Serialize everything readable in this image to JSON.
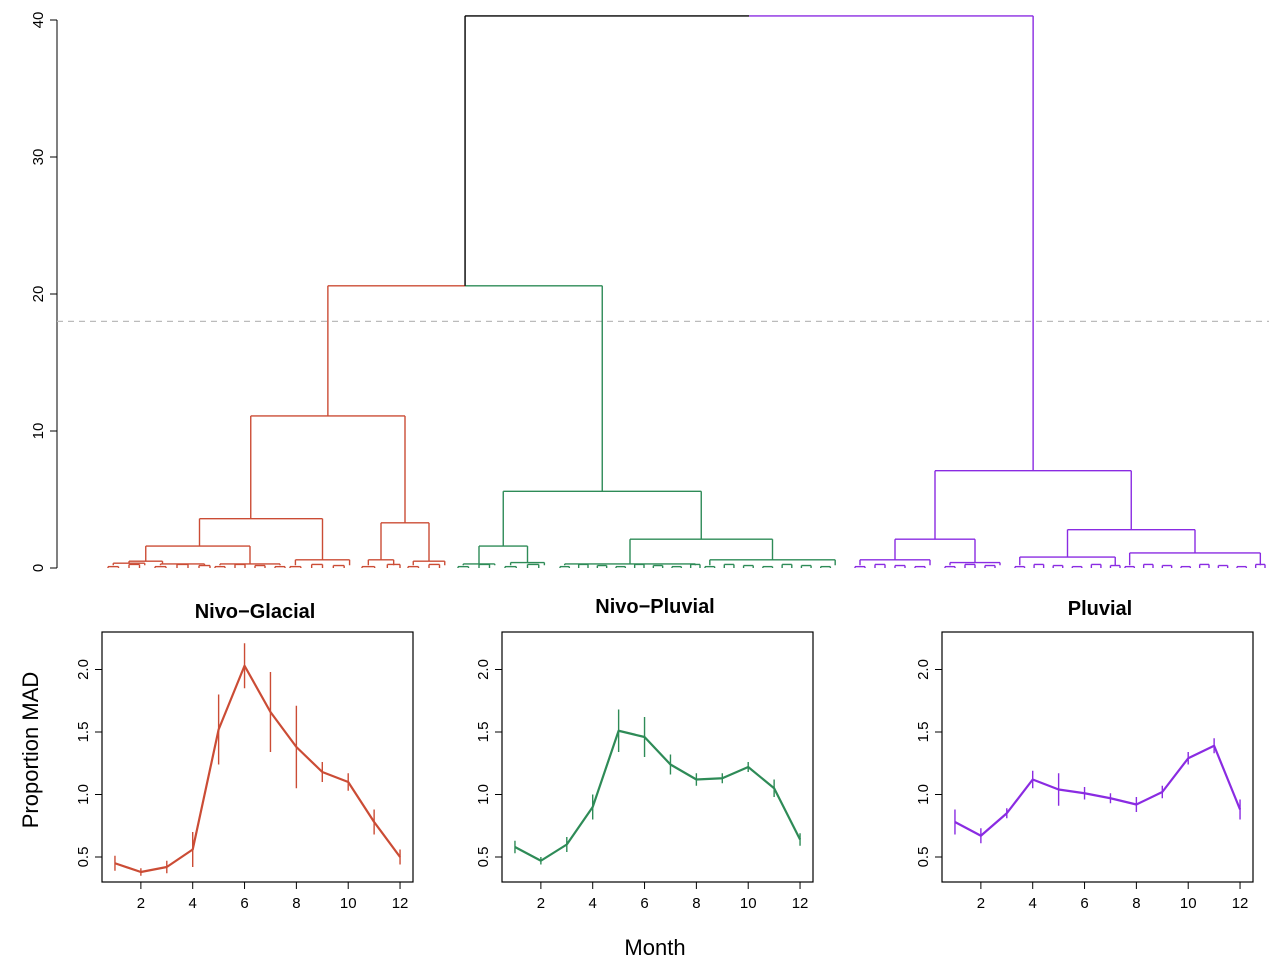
{
  "colors": {
    "nivo_glacial": "#CB4C35",
    "nivo_pluvial": "#2E8B57",
    "pluvial": "#8A2BE2",
    "root": "#000000",
    "cut_line": "#BBBBBB"
  },
  "chart_data": [
    {
      "type": "dendrogram",
      "y_ticks": [
        "0",
        "10",
        "20",
        "30",
        "40"
      ],
      "ylim": [
        0,
        40
      ],
      "cut_height": 18,
      "merges": {
        "root": 40.3,
        "nivo_glacial_nivo_pluvial": 20.6,
        "nivo_glacial": 11.1,
        "nivo_glacial_left": 3.6,
        "nivo_glacial_right": 3.3,
        "nivo_pluvial": 5.6,
        "nivo_pluvial_right": 2.1,
        "nivo_pluvial_left": 1.6,
        "pluvial": 7.1,
        "pluvial_right": 2.8,
        "pluvial_left": 2.1
      },
      "groups": [
        "Nivo-Glacial",
        "Nivo-Pluvial",
        "Pluvial"
      ]
    },
    {
      "type": "line",
      "title": "Nivo−Glacial",
      "x": [
        1,
        2,
        3,
        4,
        5,
        6,
        7,
        8,
        9,
        10,
        11,
        12
      ],
      "values": [
        0.45,
        0.38,
        0.42,
        0.56,
        1.52,
        2.03,
        1.66,
        1.38,
        1.18,
        1.1,
        0.78,
        0.5
      ],
      "error": [
        0.06,
        0.03,
        0.05,
        0.14,
        0.28,
        0.18,
        0.32,
        0.33,
        0.08,
        0.07,
        0.1,
        0.06
      ],
      "x_ticks": [
        "2",
        "4",
        "6",
        "8",
        "10",
        "12"
      ],
      "y_ticks": [
        "0.5",
        "1.0",
        "1.5",
        "2.0"
      ],
      "ylim": [
        0.3,
        2.3
      ],
      "xlim": [
        0.5,
        12.5
      ]
    },
    {
      "type": "line",
      "title": "Nivo−Pluvial",
      "x": [
        1,
        2,
        3,
        4,
        5,
        6,
        7,
        8,
        9,
        10,
        11,
        12
      ],
      "values": [
        0.58,
        0.47,
        0.6,
        0.9,
        1.51,
        1.46,
        1.24,
        1.12,
        1.13,
        1.22,
        1.05,
        0.64
      ],
      "error": [
        0.05,
        0.03,
        0.06,
        0.1,
        0.17,
        0.16,
        0.08,
        0.05,
        0.04,
        0.04,
        0.07,
        0.05
      ],
      "x_ticks": [
        "2",
        "4",
        "6",
        "8",
        "10",
        "12"
      ],
      "y_ticks": [
        "0.5",
        "1.0",
        "1.5",
        "2.0"
      ],
      "ylim": [
        0.3,
        2.3
      ],
      "xlim": [
        0.5,
        12.5
      ]
    },
    {
      "type": "line",
      "title": "Pluvial",
      "x": [
        1,
        2,
        3,
        4,
        5,
        6,
        7,
        8,
        9,
        10,
        11,
        12
      ],
      "values": [
        0.78,
        0.67,
        0.85,
        1.12,
        1.04,
        1.01,
        0.97,
        0.92,
        1.02,
        1.29,
        1.39,
        0.88
      ],
      "error": [
        0.1,
        0.06,
        0.04,
        0.07,
        0.13,
        0.05,
        0.04,
        0.06,
        0.05,
        0.05,
        0.06,
        0.08
      ],
      "x_ticks": [
        "2",
        "4",
        "6",
        "8",
        "10",
        "12"
      ],
      "y_ticks": [
        "0.5",
        "1.0",
        "1.5",
        "2.0"
      ],
      "ylim": [
        0.3,
        2.3
      ],
      "xlim": [
        0.5,
        12.5
      ]
    }
  ],
  "axes": {
    "shared_ylabel": "Proportion MAD",
    "shared_xlabel": "Month"
  }
}
